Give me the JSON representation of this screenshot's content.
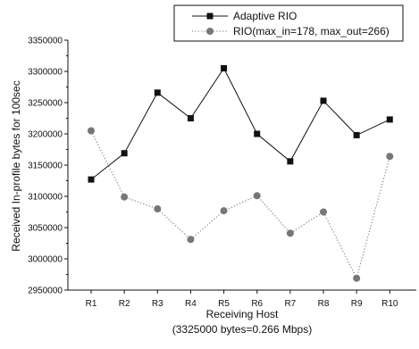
{
  "chart_data": {
    "type": "line",
    "xlabel": "Receiving Host",
    "xlabel_note": "(3325000 bytes=0.266 Mbps)",
    "ylabel": "Received In-profile bytes for 100sec",
    "categories": [
      "R1",
      "R2",
      "R3",
      "R4",
      "R5",
      "R6",
      "R7",
      "R8",
      "R9",
      "R10"
    ],
    "ylim": [
      2950000,
      3350000
    ],
    "yticks": [
      2950000,
      3000000,
      3050000,
      3100000,
      3150000,
      3200000,
      3250000,
      3300000,
      3350000
    ],
    "ytick_labels": [
      "2950000",
      "3000000",
      "3050000",
      "3100000",
      "3150000",
      "3200000",
      "3250000",
      "3300000",
      "3350000"
    ],
    "grid": false,
    "legend_position": "top-right",
    "series": [
      {
        "name": "Adaptive RIO",
        "color": "#111111",
        "marker": "square",
        "line": "solid",
        "values": [
          3127000,
          3169000,
          3266000,
          3225000,
          3305000,
          3200000,
          3156000,
          3253000,
          3198000,
          3223000
        ]
      },
      {
        "name": "RIO(max_in=178, max_out=266)",
        "color": "#777777",
        "marker": "circle",
        "line": "dotted",
        "values": [
          3205000,
          3099000,
          3080000,
          3031000,
          3077000,
          3101000,
          3041000,
          3075000,
          2969000,
          3164000
        ]
      }
    ]
  }
}
